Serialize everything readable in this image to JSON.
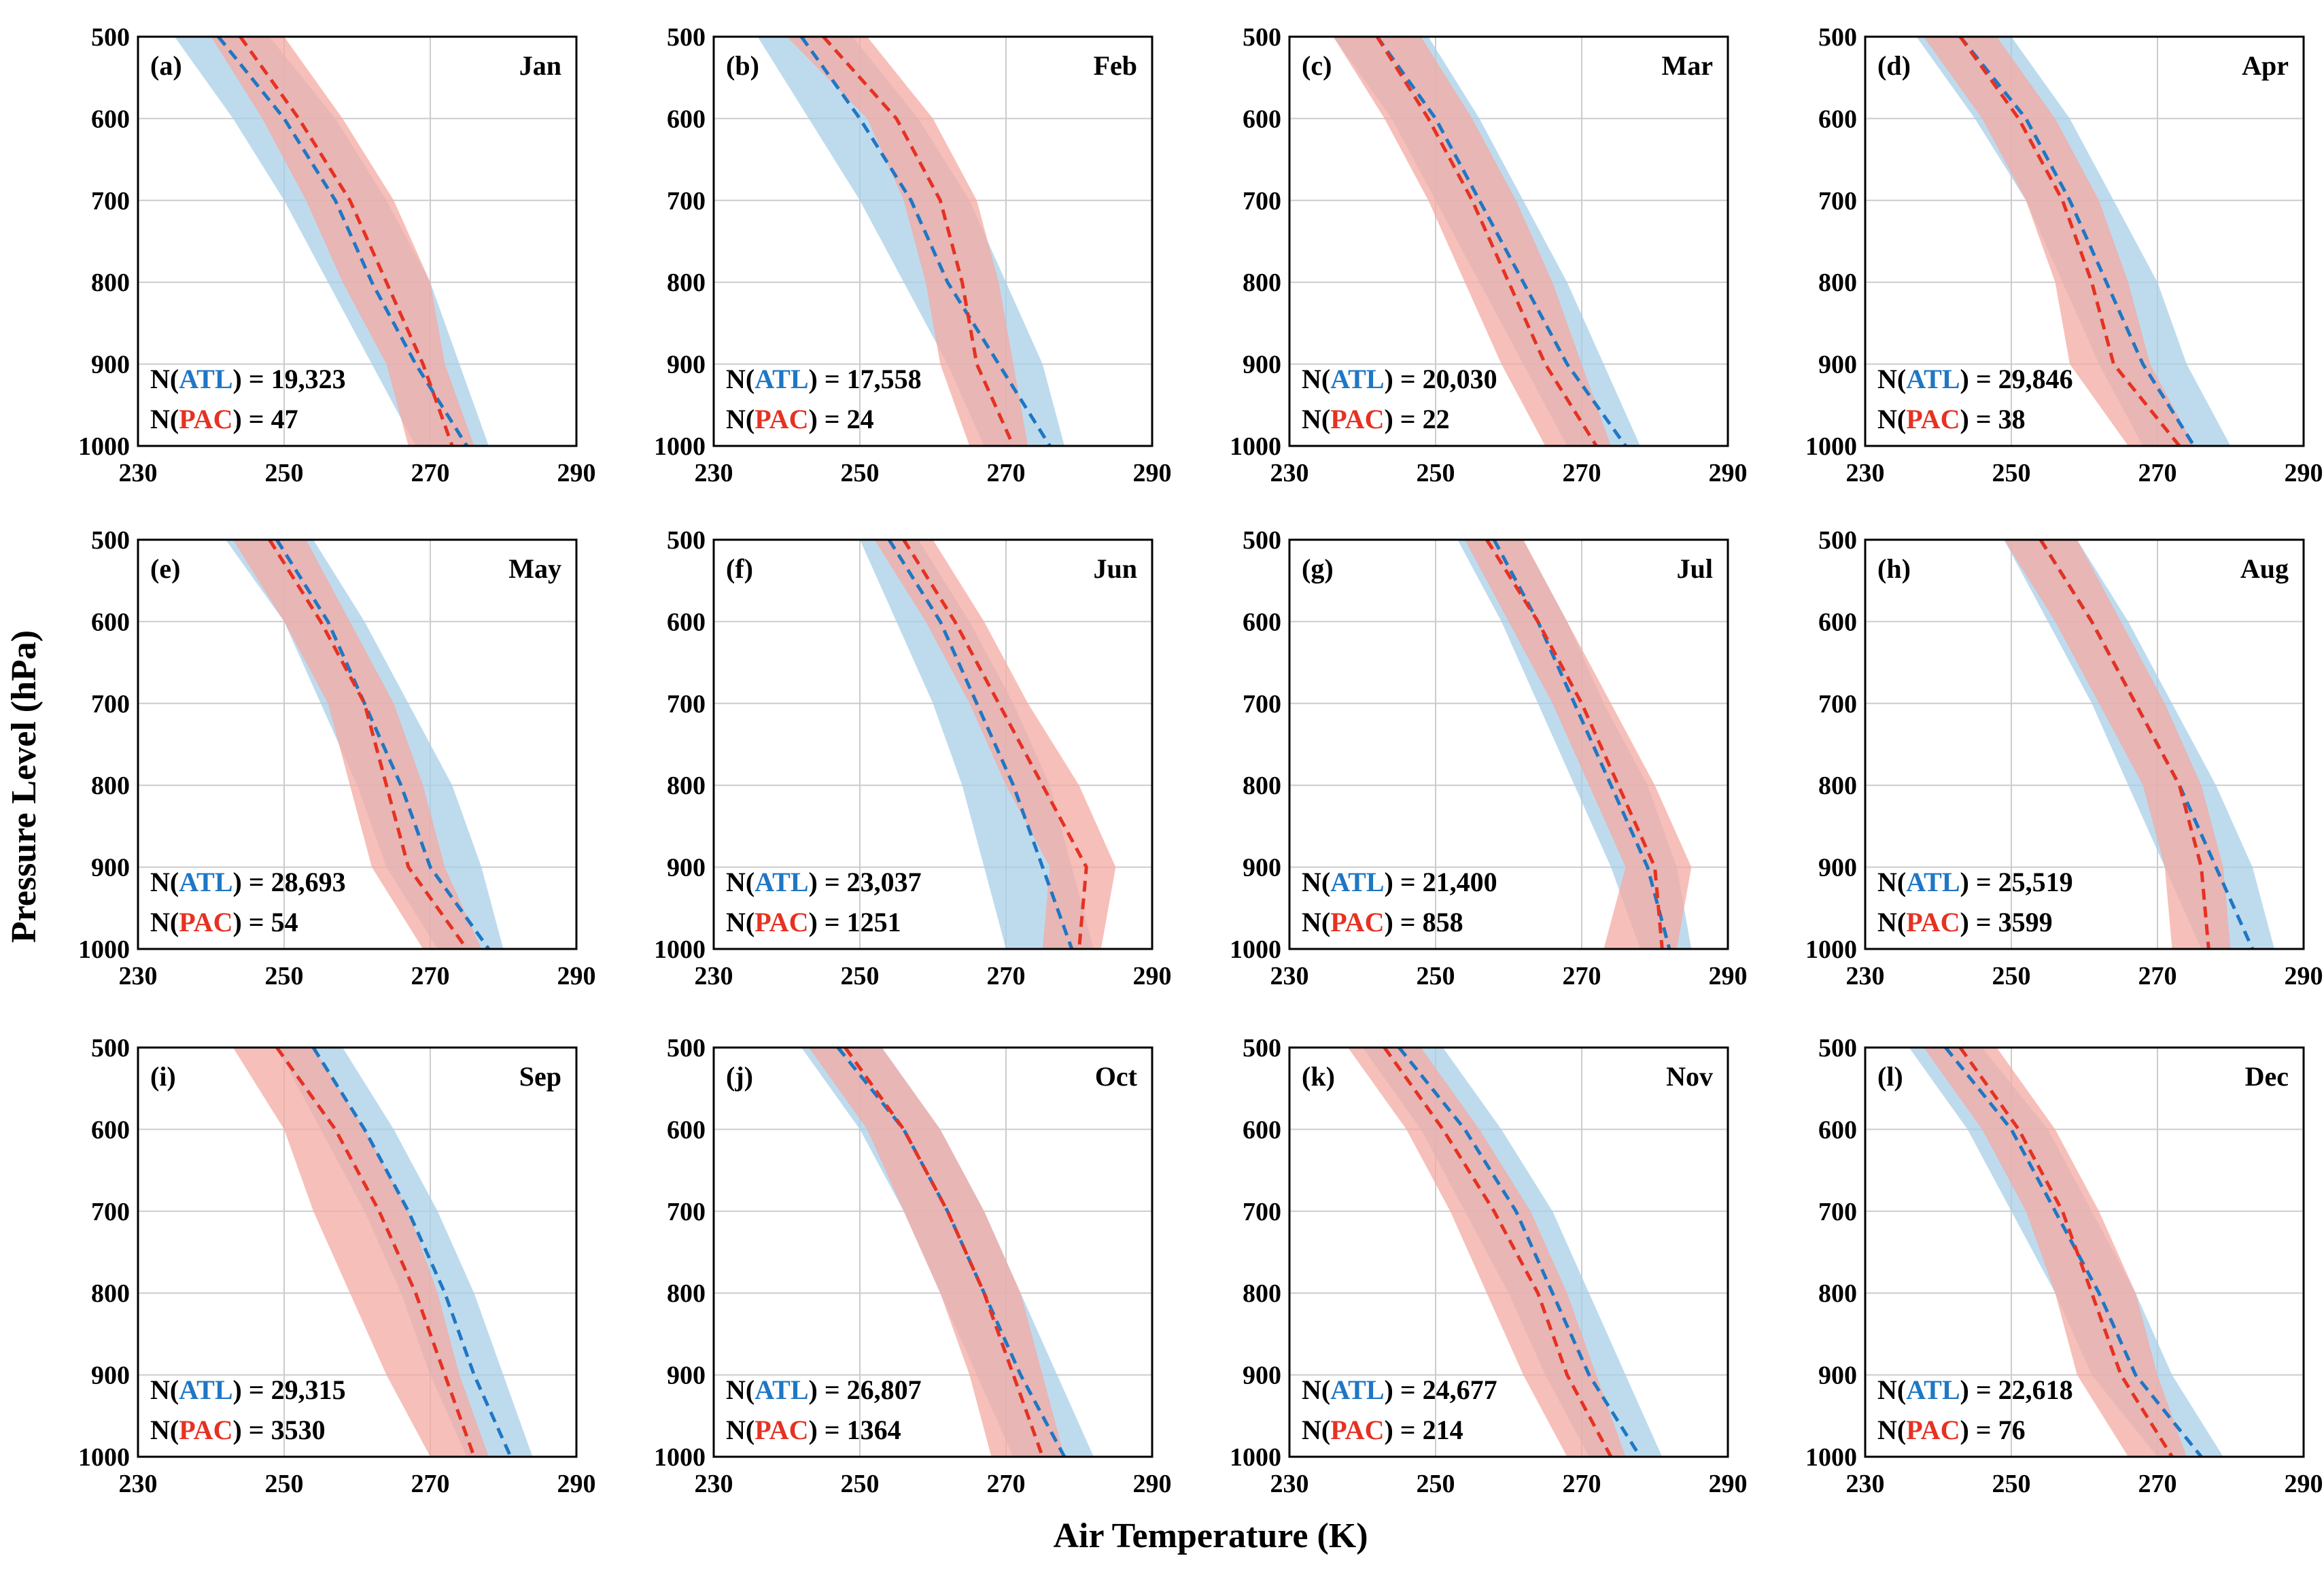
{
  "colors": {
    "atl": "#1f77c4",
    "atl_band": "#a8cfe8",
    "pac": "#e53222",
    "pac_band": "#f4aaa2",
    "overlap_hint": "#a58393"
  },
  "chart_data": {
    "type": "line",
    "xlabel": "Air Temperature (K)",
    "ylabel": "Pressure Level (hPa)",
    "xlim": [
      230,
      290
    ],
    "ylim": [
      1000,
      500
    ],
    "xticks": [
      230,
      250,
      270,
      290
    ],
    "yticks": [
      500,
      600,
      700,
      800,
      900,
      1000
    ],
    "grid": true,
    "levels": [
      500,
      600,
      700,
      800,
      900,
      1000
    ],
    "legend_labels": {
      "atl": "ATL",
      "pac": "PAC"
    },
    "panels": [
      {
        "tag": "(a)",
        "month": "Jan",
        "n_atl": "19,323",
        "n_pac": "47",
        "atl_mean": [
          241,
          250,
          257,
          262,
          268,
          275
        ],
        "atl_lo": [
          235,
          243,
          250,
          256,
          262,
          268
        ],
        "atl_hi": [
          248,
          257,
          264,
          270,
          274,
          278
        ],
        "pac_mean": [
          244,
          252,
          259,
          264,
          269,
          273
        ],
        "pac_lo": [
          240,
          247,
          253,
          258,
          264,
          267
        ],
        "pac_hi": [
          250,
          258,
          265,
          270,
          272,
          276
        ]
      },
      {
        "tag": "(b)",
        "month": "Feb",
        "n_atl": "17,558",
        "n_pac": "24",
        "atl_mean": [
          242,
          250,
          257,
          262,
          269,
          276
        ],
        "atl_lo": [
          236,
          243,
          250,
          256,
          262,
          267
        ],
        "atl_hi": [
          249,
          258,
          265,
          270,
          275,
          278
        ],
        "pac_mean": [
          245,
          255,
          261,
          264,
          266,
          271
        ],
        "pac_lo": [
          240,
          251,
          256,
          259,
          261,
          265
        ],
        "pac_hi": [
          251,
          260,
          266,
          269,
          271,
          273
        ]
      },
      {
        "tag": "(c)",
        "month": "Mar",
        "n_atl": "20,030",
        "n_pac": "22",
        "atl_mean": [
          242,
          250,
          256,
          262,
          268,
          276
        ],
        "atl_lo": [
          236,
          244,
          250,
          256,
          262,
          268
        ],
        "atl_hi": [
          249,
          256,
          262,
          268,
          273,
          278
        ],
        "pac_mean": [
          242,
          249,
          255,
          260,
          265,
          272
        ],
        "pac_lo": [
          236,
          243,
          249,
          254,
          259,
          265
        ],
        "pac_hi": [
          248,
          255,
          261,
          266,
          270,
          274
        ]
      },
      {
        "tag": "(d)",
        "month": "Apr",
        "n_atl": "29,846",
        "n_pac": "38",
        "atl_mean": [
          243,
          252,
          258,
          263,
          268,
          275
        ],
        "atl_lo": [
          237,
          245,
          252,
          257,
          262,
          268
        ],
        "atl_hi": [
          250,
          258,
          264,
          270,
          274,
          280
        ],
        "pac_mean": [
          243,
          251,
          257,
          261,
          264,
          273
        ],
        "pac_lo": [
          238,
          246,
          252,
          256,
          258,
          266
        ],
        "pac_hi": [
          248,
          256,
          262,
          266,
          269,
          275
        ]
      },
      {
        "tag": "(e)",
        "month": "May",
        "n_atl": "28,693",
        "n_pac": "54",
        "atl_mean": [
          249,
          256,
          261,
          266,
          270,
          278
        ],
        "atl_lo": [
          242,
          250,
          255,
          260,
          264,
          271
        ],
        "atl_hi": [
          254,
          261,
          267,
          273,
          277,
          280
        ],
        "pac_mean": [
          248,
          255,
          261,
          264,
          267,
          275
        ],
        "pac_lo": [
          243,
          250,
          256,
          259,
          262,
          269
        ],
        "pac_hi": [
          253,
          259,
          265,
          269,
          272,
          277
        ]
      },
      {
        "tag": "(f)",
        "month": "Jun",
        "n_atl": "23,037",
        "n_pac": "1251",
        "atl_mean": [
          254,
          261,
          266,
          271,
          275,
          279
        ],
        "atl_lo": [
          250,
          255,
          260,
          264,
          267,
          270
        ],
        "atl_hi": [
          258,
          265,
          271,
          276,
          279,
          282
        ],
        "pac_mean": [
          256,
          263,
          269,
          275,
          281,
          280
        ],
        "pac_lo": [
          252,
          259,
          265,
          270,
          276,
          275
        ],
        "pac_hi": [
          260,
          267,
          273,
          280,
          285,
          283
        ]
      },
      {
        "tag": "(g)",
        "month": "Jul",
        "n_atl": "21,400",
        "n_pac": "858",
        "atl_mean": [
          258,
          264,
          269,
          274,
          279,
          282
        ],
        "atl_lo": [
          253,
          259,
          264,
          269,
          274,
          278
        ],
        "atl_hi": [
          262,
          268,
          273,
          279,
          283,
          285
        ],
        "pac_mean": [
          257,
          264,
          270,
          275,
          280,
          281
        ],
        "pac_lo": [
          254,
          260,
          266,
          271,
          276,
          273
        ],
        "pac_hi": [
          262,
          268,
          274,
          280,
          285,
          283
        ]
      },
      {
        "tag": "(h)",
        "month": "Aug",
        "n_atl": "25,519",
        "n_pac": "3599",
        "atl_mean": [
          254,
          261,
          267,
          273,
          278,
          283
        ],
        "atl_lo": [
          249,
          255,
          261,
          266,
          271,
          276
        ],
        "atl_hi": [
          259,
          266,
          272,
          278,
          283,
          286
        ],
        "pac_mean": [
          254,
          261,
          267,
          273,
          276,
          277
        ],
        "pac_lo": [
          249,
          256,
          262,
          268,
          271,
          272
        ],
        "pac_hi": [
          259,
          265,
          271,
          276,
          279,
          280
        ]
      },
      {
        "tag": "(i)",
        "month": "Sep",
        "n_atl": "29,315",
        "n_pac": "3530",
        "atl_mean": [
          254,
          261,
          267,
          272,
          276,
          281
        ],
        "atl_lo": [
          249,
          255,
          261,
          266,
          270,
          275
        ],
        "atl_hi": [
          258,
          265,
          271,
          276,
          280,
          284
        ],
        "pac_mean": [
          249,
          257,
          263,
          268,
          272,
          276
        ],
        "pac_lo": [
          243,
          250,
          254,
          259,
          264,
          270
        ],
        "pac_hi": [
          254,
          261,
          267,
          271,
          274,
          278
        ]
      },
      {
        "tag": "(j)",
        "month": "Oct",
        "n_atl": "26,807",
        "n_pac": "1364",
        "atl_mean": [
          247,
          256,
          262,
          267,
          272,
          278
        ],
        "atl_lo": [
          242,
          250,
          256,
          261,
          266,
          271
        ],
        "atl_hi": [
          253,
          261,
          267,
          272,
          277,
          282
        ],
        "pac_mean": [
          248,
          256,
          262,
          267,
          271,
          275
        ],
        "pac_lo": [
          243,
          251,
          256,
          261,
          265,
          268
        ],
        "pac_hi": [
          253,
          261,
          267,
          272,
          275,
          278
        ]
      },
      {
        "tag": "(k)",
        "month": "Nov",
        "n_atl": "24,677",
        "n_pac": "214",
        "atl_mean": [
          245,
          254,
          261,
          266,
          271,
          278
        ],
        "atl_lo": [
          240,
          248,
          254,
          260,
          265,
          271
        ],
        "atl_hi": [
          251,
          259,
          266,
          271,
          276,
          281
        ],
        "pac_mean": [
          243,
          251,
          258,
          264,
          268,
          274
        ],
        "pac_lo": [
          238,
          246,
          252,
          257,
          262,
          268
        ],
        "pac_hi": [
          248,
          256,
          263,
          268,
          272,
          276
        ]
      },
      {
        "tag": "(l)",
        "month": "Dec",
        "n_atl": "22,618",
        "n_pac": "76",
        "atl_mean": [
          241,
          250,
          256,
          262,
          267,
          276
        ],
        "atl_lo": [
          236,
          244,
          250,
          256,
          261,
          270
        ],
        "atl_hi": [
          246,
          255,
          261,
          267,
          272,
          279
        ],
        "pac_mean": [
          243,
          251,
          257,
          261,
          265,
          272
        ],
        "pac_lo": [
          238,
          246,
          252,
          256,
          259,
          266
        ],
        "pac_hi": [
          248,
          256,
          262,
          267,
          270,
          274
        ]
      }
    ]
  }
}
